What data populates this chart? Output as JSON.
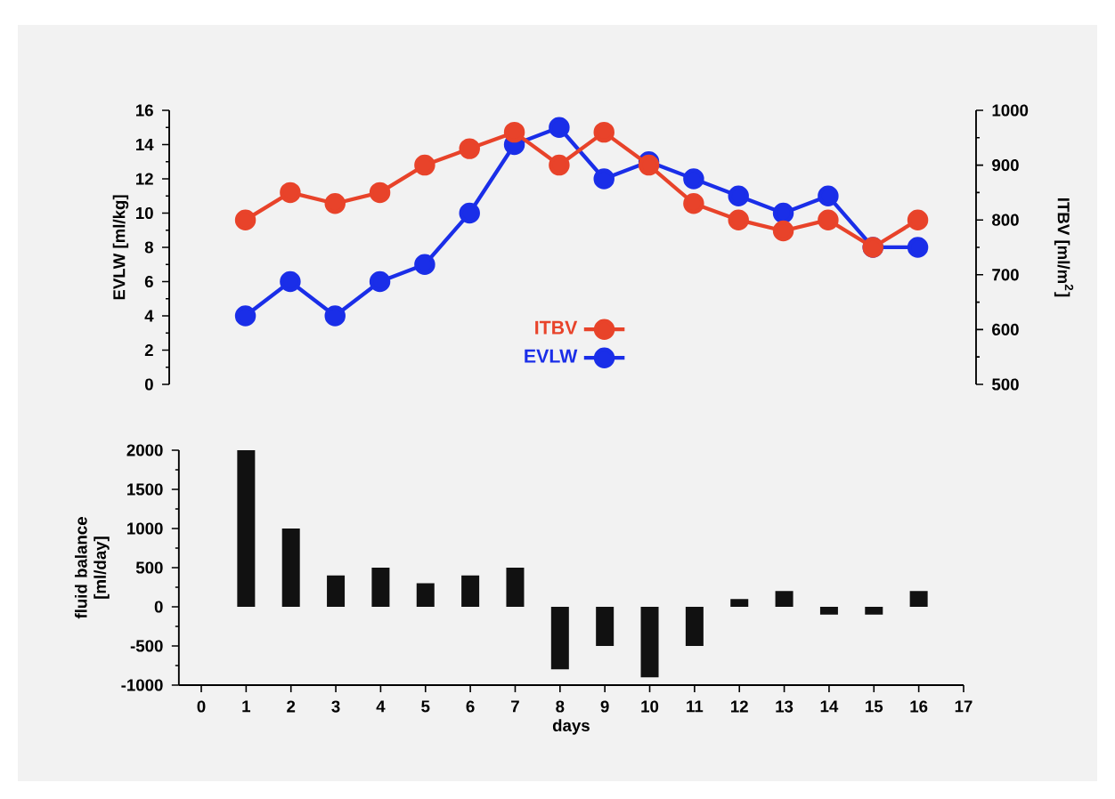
{
  "chart_data": [
    {
      "type": "line",
      "categories": [
        null,
        null,
        null,
        null,
        null,
        null,
        null,
        null,
        null,
        null,
        null,
        null,
        null,
        null,
        null,
        null
      ],
      "ylabel": "EVLW [ml/kg]",
      "y2label": "ITBV [ml/m$^{2}$]",
      "ylim": [
        0,
        16
      ],
      "yticks": [
        0,
        2,
        4,
        6,
        8,
        10,
        12,
        14,
        16
      ],
      "y2lim": [
        500,
        1000
      ],
      "y2ticks": [
        500,
        600,
        700,
        800,
        900,
        1000
      ],
      "marker": "circle",
      "legend": "bottom",
      "series": [
        {
          "name": "ITBV",
          "color": "#e8432a",
          "axis": "y2",
          "values": [
            800,
            850,
            830,
            850,
            900,
            930,
            960,
            900,
            960,
            900,
            830,
            800,
            780,
            800,
            750,
            800
          ]
        },
        {
          "name": "EVLW",
          "color": "#1a2ee8",
          "values": [
            4,
            6,
            4,
            6,
            7,
            10,
            14,
            15,
            12,
            13,
            12,
            11,
            10,
            11,
            8,
            8
          ]
        }
      ]
    },
    {
      "type": "bar",
      "x": [
        1,
        2,
        3,
        4,
        5,
        6,
        7,
        8,
        9,
        10,
        11,
        12,
        13,
        14,
        15,
        16
      ],
      "xlim": [
        -0.5,
        17
      ],
      "xticks": [
        0,
        1,
        2,
        3,
        4,
        5,
        6,
        7,
        8,
        9,
        10,
        11,
        12,
        13,
        14,
        15,
        16,
        17
      ],
      "xlabel": "days",
      "ylabel": "fluid balance [ml/day]",
      "color": "#111111",
      "ylim": [
        -1000,
        2000
      ],
      "yticks": [
        -1000,
        -500,
        0,
        500,
        1000,
        1500,
        2000
      ],
      "values": [
        2000,
        1000,
        400,
        500,
        300,
        400,
        500,
        -800,
        -500,
        -900,
        -500,
        100,
        200,
        -100,
        -100,
        200
      ]
    }
  ]
}
